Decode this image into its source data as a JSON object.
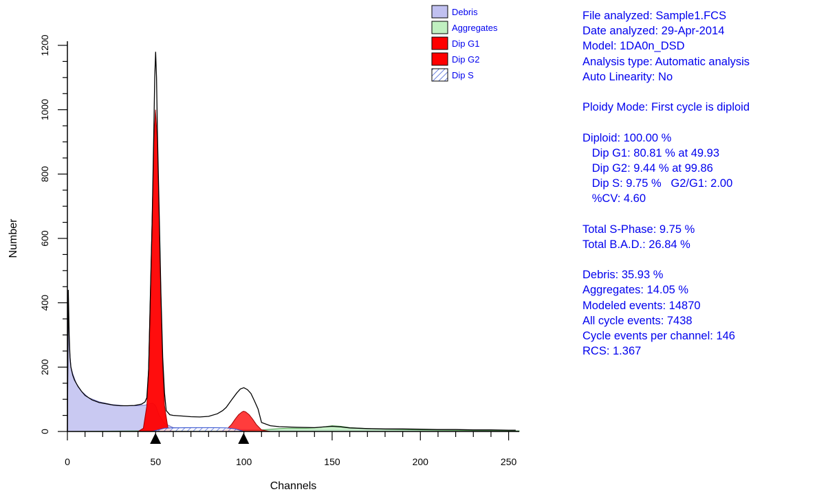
{
  "chart_data": {
    "type": "area",
    "xlabel": "Channels",
    "ylabel": "Number",
    "xlim": [
      0,
      256
    ],
    "ylim": [
      0,
      1200
    ],
    "x_ticks": [
      0,
      50,
      100,
      150,
      200,
      250
    ],
    "y_ticks": [
      0,
      200,
      400,
      600,
      800,
      1000,
      1200
    ],
    "legend_position": "top-right",
    "legend": [
      {
        "label": "Debris",
        "color": "#c0c0f0",
        "pattern": "solid"
      },
      {
        "label": "Aggregates",
        "color": "#c0f0c0",
        "pattern": "solid"
      },
      {
        "label": "Dip G1",
        "color": "#ff0000",
        "pattern": "solid"
      },
      {
        "label": "Dip G2",
        "color": "#ff0000",
        "pattern": "solid"
      },
      {
        "label": "Dip S",
        "color": "#3050d0",
        "pattern": "hatch"
      }
    ],
    "markers": [
      49.93,
      99.86
    ],
    "series": [
      {
        "name": "Debris",
        "color": "#c0c0f0",
        "x": [
          0,
          0.5,
          1,
          2,
          3,
          5,
          8,
          12,
          18,
          25,
          32,
          40,
          44,
          46,
          47,
          48,
          49,
          50,
          52,
          55,
          60,
          70,
          80,
          90,
          100,
          120,
          150,
          200,
          256
        ],
        "y": [
          0,
          430,
          270,
          200,
          180,
          150,
          125,
          105,
          92,
          84,
          80,
          80,
          82,
          85,
          87,
          88,
          85,
          80,
          50,
          25,
          12,
          9,
          8,
          7,
          6,
          5,
          5,
          3,
          2
        ]
      },
      {
        "name": "Aggregates",
        "color": "#c0f0c0",
        "x": [
          0,
          40,
          80,
          100,
          110,
          115,
          120,
          125,
          130,
          135,
          140,
          145,
          150,
          155,
          160,
          170,
          180,
          200,
          230,
          256
        ],
        "y": [
          0,
          2,
          2,
          3,
          5,
          7,
          9,
          10,
          10,
          10,
          11,
          14,
          18,
          16,
          12,
          9,
          7,
          5,
          3,
          2
        ]
      },
      {
        "name": "Dip G1",
        "color": "#ff0000",
        "x": [
          40,
          43,
          45,
          46,
          47,
          48,
          49,
          49.93,
          51,
          52,
          53,
          54,
          55,
          57,
          60
        ],
        "y": [
          0,
          10,
          80,
          200,
          420,
          660,
          900,
          1000,
          900,
          660,
          420,
          200,
          80,
          10,
          0
        ]
      },
      {
        "name": "Dip G2",
        "color": "#ff0000",
        "x": [
          85,
          90,
          93,
          95,
          97,
          99,
          99.86,
          101,
          103,
          105,
          107,
          110,
          115
        ],
        "y": [
          0,
          5,
          22,
          38,
          52,
          61,
          63,
          61,
          52,
          38,
          22,
          5,
          0
        ]
      },
      {
        "name": "Dip S",
        "color": "#3050d0",
        "x": [
          48,
          55,
          60,
          70,
          80,
          90,
          95,
          100
        ],
        "y": [
          0,
          10,
          11,
          12,
          12,
          11,
          8,
          0
        ]
      },
      {
        "name": "Data",
        "x": [
          0,
          0.5,
          1,
          1.5,
          2,
          3,
          4,
          6,
          8,
          10,
          14,
          18,
          22,
          26,
          30,
          34,
          38,
          42,
          44,
          45,
          46,
          47,
          48,
          49,
          49.5,
          50,
          50.5,
          51,
          52,
          53,
          54,
          55,
          56,
          58,
          60,
          65,
          70,
          75,
          80,
          85,
          88,
          90,
          93,
          96,
          98,
          100,
          102,
          104,
          106,
          108,
          110,
          115,
          120,
          130,
          140,
          145,
          150,
          155,
          160,
          170,
          180,
          190,
          200,
          210,
          220,
          230,
          240,
          250,
          254
        ],
        "y": [
          0,
          440,
          300,
          230,
          200,
          175,
          160,
          140,
          125,
          112,
          98,
          90,
          86,
          82,
          80,
          80,
          81,
          85,
          92,
          105,
          190,
          420,
          650,
          950,
          1100,
          1180,
          1100,
          930,
          680,
          430,
          230,
          120,
          65,
          52,
          50,
          48,
          46,
          45,
          47,
          55,
          65,
          75,
          98,
          120,
          132,
          136,
          130,
          118,
          95,
          70,
          28,
          18,
          15,
          13,
          12,
          14,
          16,
          14,
          11,
          9,
          8,
          8,
          7,
          6,
          6,
          5,
          5,
          4,
          4
        ]
      }
    ]
  },
  "stats": [
    "File analyzed: Sample1.FCS",
    "Date analyzed: 29-Apr-2014",
    "Model: 1DA0n_DSD",
    "Analysis type: Automatic analysis",
    "Auto Linearity: No",
    "",
    "Ploidy Mode: First cycle is diploid",
    "",
    "Diploid: 100.00 %",
    "   Dip G1: 80.81 % at 49.93",
    "   Dip G2: 9.44 % at 99.86",
    "   Dip S: 9.75 %   G2/G1: 2.00",
    "   %CV: 4.60",
    "",
    "Total S-Phase: 9.75 %",
    "Total B.A.D.: 26.84 %",
    "",
    "Debris: 35.93 %",
    "Aggregates: 14.05 %",
    "Modeled events: 14870",
    "All cycle events: 7438",
    "Cycle events per channel: 146",
    "RCS: 1.367"
  ]
}
